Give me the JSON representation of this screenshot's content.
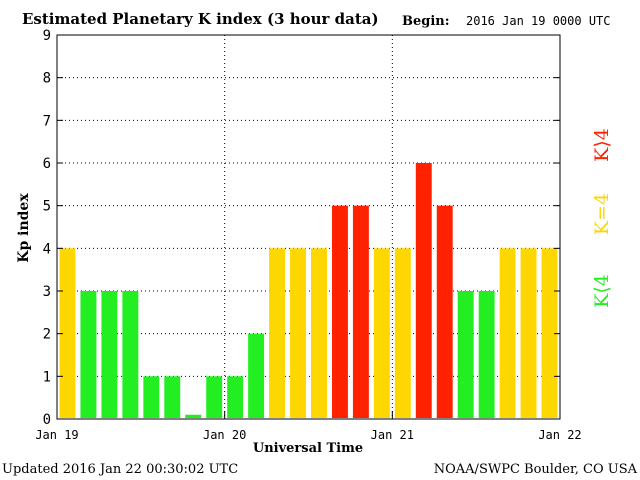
{
  "chart_data": {
    "type": "bar",
    "title": "Estimated Planetary K index (3 hour data)",
    "begin_label": "Begin:",
    "begin_value": "2016 Jan 19 0000 UTC",
    "xlabel": "Universal Time",
    "ylabel": "Kp index",
    "ylim": [
      0,
      9
    ],
    "yticks": [
      "0",
      "1",
      "2",
      "3",
      "4",
      "5",
      "6",
      "7",
      "8",
      "9"
    ],
    "xticks": [
      "Jan 19",
      "Jan 20",
      "Jan 21",
      "Jan 22"
    ],
    "grid": true,
    "values": [
      4,
      3,
      3,
      3,
      1,
      1,
      0.1,
      1,
      1,
      2,
      4,
      4,
      4,
      5,
      5,
      4,
      4,
      6,
      5,
      3,
      3,
      4,
      4,
      4
    ],
    "colors": {
      "below": "#22ee22",
      "equal": "#ffd700",
      "above": "#ff2200"
    },
    "legend": {
      "below": "K⟨4",
      "equal": "K=4",
      "above": "K⟩4"
    }
  },
  "footer": {
    "updated": "Updated 2016 Jan 22 00:30:02 UTC",
    "source": "NOAA/SWPC Boulder, CO USA"
  }
}
